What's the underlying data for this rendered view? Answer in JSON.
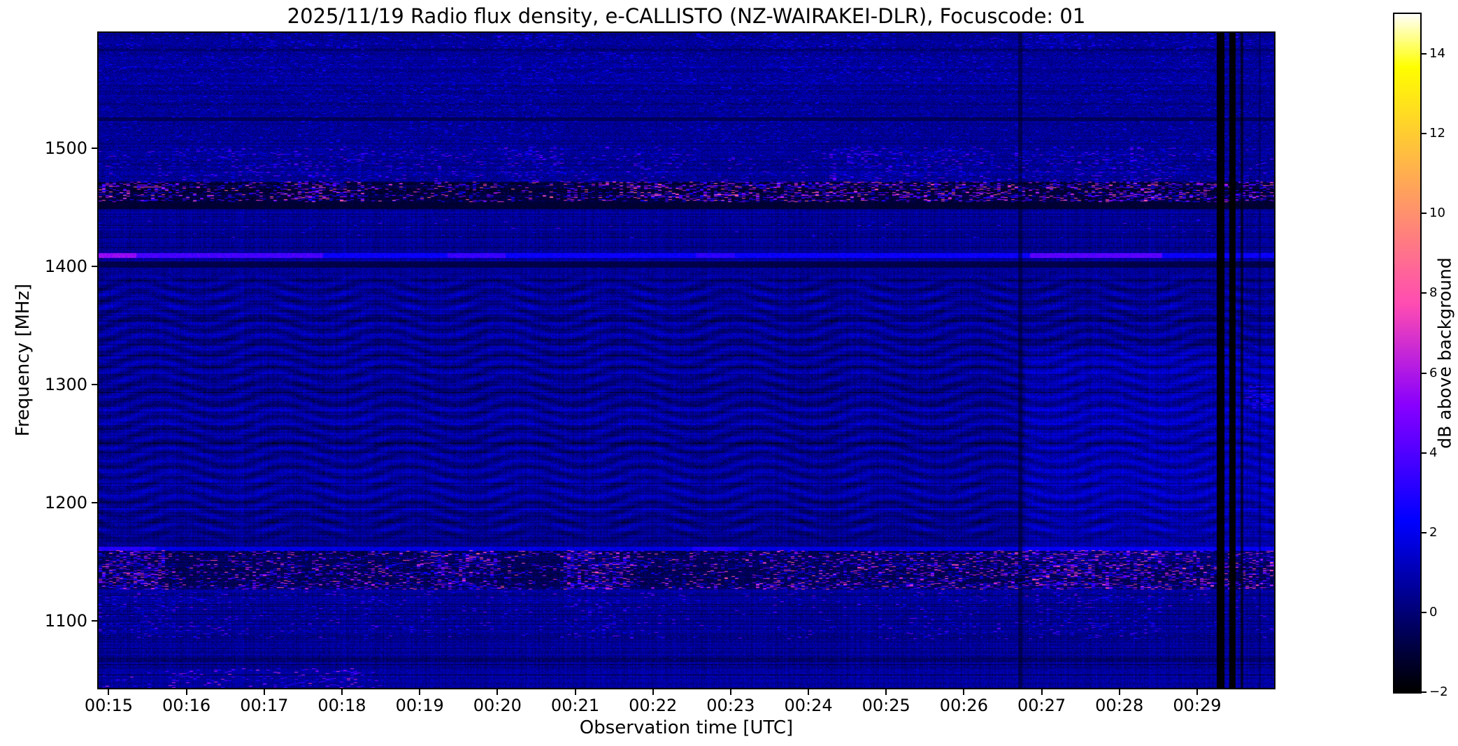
{
  "chart_data": {
    "type": "heatmap",
    "title": "2025/11/19  Radio flux density, e-CALLISTO (NZ-WAIRAKEI-DLR), Focuscode: 01",
    "xlabel": "Observation time [UTC]",
    "ylabel": "Frequency [MHz]",
    "meta": {
      "date": "2025/11/19",
      "instrument": "e-CALLISTO",
      "station": "NZ-WAIRAKEI-DLR",
      "focuscode": "01"
    },
    "x_range_minutes": [
      14.87,
      29.99
    ],
    "y_range_mhz": [
      1043,
      1598
    ],
    "grid": false,
    "x_ticks": [
      {
        "minute": 15,
        "label": "00:15"
      },
      {
        "minute": 16,
        "label": "00:16"
      },
      {
        "minute": 17,
        "label": "00:17"
      },
      {
        "minute": 18,
        "label": "00:18"
      },
      {
        "minute": 19,
        "label": "00:19"
      },
      {
        "minute": 20,
        "label": "00:20"
      },
      {
        "minute": 21,
        "label": "00:21"
      },
      {
        "minute": 22,
        "label": "00:22"
      },
      {
        "minute": 23,
        "label": "00:23"
      },
      {
        "minute": 24,
        "label": "00:24"
      },
      {
        "minute": 25,
        "label": "00:25"
      },
      {
        "minute": 26,
        "label": "00:26"
      },
      {
        "minute": 27,
        "label": "00:27"
      },
      {
        "minute": 28,
        "label": "00:28"
      },
      {
        "minute": 29,
        "label": "00:29"
      }
    ],
    "y_ticks": [
      {
        "mhz": 1500,
        "label": "1500"
      },
      {
        "mhz": 1400,
        "label": "1400"
      },
      {
        "mhz": 1300,
        "label": "1300"
      },
      {
        "mhz": 1200,
        "label": "1200"
      },
      {
        "mhz": 1100,
        "label": "1100"
      }
    ],
    "colorbar": {
      "label": "dB above background",
      "vmin": -2,
      "vmax": 15,
      "ticks": [
        {
          "value": 14,
          "label": "14"
        },
        {
          "value": 12,
          "label": "12"
        },
        {
          "value": 10,
          "label": "10"
        },
        {
          "value": 8,
          "label": "8"
        },
        {
          "value": 6,
          "label": "6"
        },
        {
          "value": 4,
          "label": "4"
        },
        {
          "value": 2,
          "label": "2"
        },
        {
          "value": 0,
          "label": "0"
        },
        {
          "value": -2,
          "label": "−2"
        }
      ],
      "colormap": {
        "name": "gnuplot2-like",
        "stops": [
          {
            "pos": 0.0,
            "color": "#000000"
          },
          {
            "pos": 0.15,
            "color": "#000099"
          },
          {
            "pos": 0.3,
            "color": "#2800ff"
          },
          {
            "pos": 0.5,
            "color": "#c729d6"
          },
          {
            "pos": 0.7,
            "color": "#ff8f70"
          },
          {
            "pos": 0.85,
            "color": "#ffdb24"
          },
          {
            "pos": 1.0,
            "color": "#ffffff"
          }
        ]
      }
    },
    "dominant_colors": {
      "figure_background": "#ffffff",
      "text": "#000000",
      "spectrogram_background": "#00008c",
      "rfi_magenta": "#c433c8",
      "dead_channel_black": "#000000"
    },
    "features": {
      "background": {
        "base_db": 0.5,
        "row_noise_db": 0.5,
        "col_noise_db": 0.3,
        "pixel_noise_db": 0.65
      },
      "wave_region": {
        "f_min": 1162,
        "f_max": 1398,
        "amplitude_db": 0.55,
        "description": "wavy interference fringe pattern across mid band"
      },
      "bright_lines": [
        {
          "f_center": 1409.5,
          "width_mhz": 4,
          "base_db": 2.4,
          "segments": [
            {
              "t0": 14.87,
              "t1": 15.35,
              "db": 5.5
            },
            {
              "t0": 15.35,
              "t1": 17.75,
              "db": 3.8
            },
            {
              "t0": 19.35,
              "t1": 20.1,
              "db": 3.5
            },
            {
              "t0": 22.55,
              "t1": 23.05,
              "db": 3.2
            },
            {
              "t0": 26.85,
              "t1": 28.55,
              "db": 4.2
            }
          ]
        },
        {
          "f_center": 1161,
          "width_mhz": 3.5,
          "base_db": 1.8,
          "segments": [
            {
              "t0": 14.87,
              "t1": 15.6,
              "db": 3.0
            },
            {
              "t0": 22.5,
              "t1": 23.1,
              "db": 2.8
            }
          ]
        }
      ],
      "dark_lines": [
        {
          "f_center": 1402,
          "width_mhz": 5,
          "db": -0.75
        },
        {
          "f_center": 1452,
          "width_mhz": 6,
          "db": -1.1
        },
        {
          "f_center": 1525,
          "width_mhz": 3,
          "db": -0.5
        }
      ],
      "speckle_bands": [
        {
          "f0": 1584,
          "f1": 1598,
          "density": 0.12,
          "db_lo": 1.2,
          "db_hi": 3.5,
          "base_db": 0.55,
          "overlay": false
        },
        {
          "f0": 1555,
          "f1": 1582,
          "density": 0.09,
          "db_lo": 1.2,
          "db_hi": 3.2,
          "base_db": 0.6,
          "overlay": false
        },
        {
          "f0": 1505,
          "f1": 1555,
          "density": 0.07,
          "db_lo": 1.0,
          "db_hi": 2.8,
          "base_db": 0.5,
          "overlay": false
        },
        {
          "f0": 1472,
          "f1": 1502,
          "density": 0.12,
          "db_lo": 1.2,
          "db_hi": 5.0,
          "base_db": 0.45,
          "overlay": false
        },
        {
          "f0": 1455,
          "f1": 1472,
          "density": 0.2,
          "db_lo": 2.5,
          "db_hi": 9.0,
          "base_db": -0.9,
          "overlay": false
        },
        {
          "f0": 1425,
          "f1": 1440,
          "density": 0.012,
          "db_lo": 2.0,
          "db_hi": 4.5,
          "base_db": 0.5,
          "overlay": true
        },
        {
          "f0": 1127,
          "f1": 1160,
          "density": 0.22,
          "db_lo": 2.0,
          "db_hi": 8.5,
          "base_db": -0.5,
          "overlay": false
        },
        {
          "f0": 1085,
          "f1": 1125,
          "density": 0.05,
          "db_lo": 1.5,
          "db_hi": 5.0,
          "base_db": 0.4,
          "overlay": true
        },
        {
          "f0": 1043,
          "f1": 1060,
          "density": 0.05,
          "db_lo": 3.0,
          "db_hi": 7.5,
          "base_db": 0.3,
          "overlay": true,
          "t1": 18.6
        },
        {
          "f0": 1280,
          "f1": 1300,
          "density": 0.25,
          "db_lo": 1.5,
          "db_hi": 4.0,
          "base_db": 0.4,
          "overlay": true,
          "t0": 29.62
        }
      ],
      "dark_columns": [
        {
          "t": 26.72,
          "w_min": 0.055,
          "db": -1.5,
          "strength": 0.55
        },
        {
          "t": 29.3,
          "w_min": 0.1,
          "db": -2,
          "strength": 0.95
        },
        {
          "t": 29.45,
          "w_min": 0.08,
          "db": -2,
          "strength": 0.95
        },
        {
          "t": 29.57,
          "w_min": 0.04,
          "db": -1.8,
          "strength": 0.7
        },
        {
          "t": 29.8,
          "w_min": 0.03,
          "db": -1.2,
          "strength": 0.4
        }
      ],
      "right_section_boost": {
        "t0": 26.78,
        "f0": 1150,
        "f1": 1330,
        "db": 0.45
      }
    }
  }
}
